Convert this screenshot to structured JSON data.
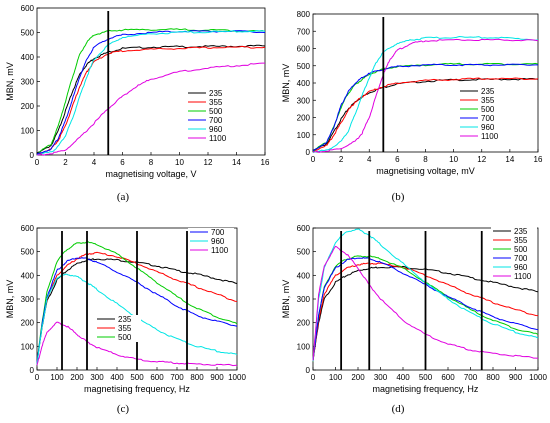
{
  "chart_data": [
    {
      "type": "line",
      "caption": "(a)",
      "xlabel": "magnetising voltage, V",
      "ylabel": "MBN, mV",
      "xlim": [
        0,
        16
      ],
      "ylim": [
        0,
        600
      ],
      "xticks": [
        "0",
        "2",
        "4",
        "6",
        "8",
        "10",
        "12",
        "14",
        "16"
      ],
      "yticks": [
        "0",
        "100",
        "200",
        "300",
        "400",
        "500",
        "600"
      ],
      "legend_position": "center-right",
      "markers": [
        5
      ],
      "series": [
        {
          "name": "235",
          "color": "#000000",
          "x": [
            0,
            1,
            1.5,
            2,
            2.5,
            3,
            3.5,
            4,
            5,
            6,
            8,
            10,
            12,
            14,
            16
          ],
          "y": [
            5,
            40,
            100,
            180,
            260,
            330,
            370,
            395,
            420,
            435,
            440,
            442,
            443,
            444,
            445
          ]
        },
        {
          "name": "355",
          "color": "#ff0000",
          "x": [
            0,
            1,
            1.5,
            2,
            2.5,
            3,
            3.5,
            4,
            5,
            6,
            8,
            10,
            12,
            14,
            16
          ],
          "y": [
            3,
            25,
            60,
            120,
            200,
            280,
            340,
            380,
            415,
            425,
            432,
            435,
            438,
            440,
            440
          ]
        },
        {
          "name": "500",
          "color": "#00cc00",
          "x": [
            0,
            1,
            1.5,
            2,
            2.5,
            3,
            3.5,
            4,
            5,
            6,
            8,
            10,
            12,
            14,
            16
          ],
          "y": [
            5,
            45,
            120,
            220,
            320,
            410,
            460,
            490,
            505,
            510,
            512,
            512,
            510,
            508,
            505
          ]
        },
        {
          "name": "700",
          "color": "#0000ff",
          "x": [
            0,
            1,
            1.5,
            2,
            2.5,
            3,
            3.5,
            4,
            5,
            6,
            8,
            10,
            12,
            14,
            16
          ],
          "y": [
            3,
            25,
            70,
            140,
            230,
            320,
            390,
            440,
            475,
            490,
            500,
            505,
            505,
            505,
            500
          ]
        },
        {
          "name": "960",
          "color": "#00e5e5",
          "x": [
            0,
            1,
            1.5,
            2,
            2.5,
            3,
            3.5,
            4,
            5,
            6,
            8,
            10,
            12,
            14,
            16
          ],
          "y": [
            2,
            12,
            35,
            80,
            150,
            240,
            320,
            390,
            450,
            480,
            495,
            500,
            502,
            505,
            505
          ]
        },
        {
          "name": "1100",
          "color": "#e000e0",
          "x": [
            0,
            1,
            2,
            3,
            4,
            5,
            6,
            7,
            8,
            10,
            12,
            14,
            16
          ],
          "y": [
            0,
            5,
            20,
            70,
            130,
            190,
            240,
            280,
            310,
            340,
            355,
            365,
            375
          ]
        }
      ]
    },
    {
      "type": "line",
      "caption": "(b)",
      "xlabel": "magnetising voltage, mV",
      "ylabel": "MBN, mV",
      "xlim": [
        0,
        16
      ],
      "ylim": [
        0,
        800
      ],
      "xticks": [
        "0",
        "2",
        "4",
        "6",
        "8",
        "10",
        "12",
        "14",
        "16"
      ],
      "yticks": [
        "0",
        "100",
        "200",
        "300",
        "400",
        "500",
        "600",
        "700",
        "800"
      ],
      "legend_position": "bottom-right",
      "markers": [
        5
      ],
      "series": [
        {
          "name": "235",
          "color": "#000000",
          "x": [
            0,
            1,
            1.5,
            2,
            2.5,
            3,
            3.5,
            4,
            5,
            6,
            8,
            10,
            12,
            14,
            16
          ],
          "y": [
            5,
            50,
            120,
            190,
            250,
            290,
            320,
            345,
            375,
            395,
            410,
            418,
            420,
            422,
            422
          ]
        },
        {
          "name": "355",
          "color": "#ff0000",
          "x": [
            0,
            1,
            1.5,
            2,
            2.5,
            3,
            3.5,
            4,
            5,
            6,
            8,
            10,
            12,
            14,
            16
          ],
          "y": [
            5,
            40,
            100,
            170,
            240,
            290,
            320,
            350,
            380,
            400,
            415,
            420,
            425,
            425,
            425
          ]
        },
        {
          "name": "500",
          "color": "#00cc00",
          "x": [
            0,
            1,
            1.5,
            2,
            2.5,
            3,
            3.5,
            4,
            5,
            6,
            8,
            10,
            12,
            14,
            16
          ],
          "y": [
            5,
            60,
            150,
            260,
            340,
            390,
            420,
            450,
            480,
            495,
            505,
            510,
            510,
            510,
            510
          ]
        },
        {
          "name": "700",
          "color": "#0000ff",
          "x": [
            0,
            1,
            1.5,
            2,
            2.5,
            3,
            3.5,
            4,
            5,
            6,
            8,
            10,
            12,
            14,
            16
          ],
          "y": [
            5,
            60,
            150,
            270,
            350,
            400,
            430,
            455,
            480,
            495,
            505,
            505,
            505,
            505,
            505
          ]
        },
        {
          "name": "960",
          "color": "#00e5e5",
          "x": [
            0,
            1,
            2,
            2.5,
            3,
            3.5,
            4,
            4.5,
            5,
            6,
            7,
            8,
            10,
            12,
            14,
            16
          ],
          "y": [
            0,
            10,
            60,
            120,
            220,
            330,
            430,
            520,
            580,
            630,
            650,
            660,
            665,
            665,
            660,
            650
          ]
        },
        {
          "name": "1100",
          "color": "#e000e0",
          "x": [
            0,
            1,
            2,
            3,
            3.5,
            4,
            4.5,
            5,
            5.5,
            6,
            7,
            8,
            10,
            12,
            14,
            16
          ],
          "y": [
            0,
            5,
            20,
            60,
            110,
            200,
            330,
            450,
            540,
            590,
            630,
            645,
            650,
            650,
            650,
            645
          ]
        }
      ]
    },
    {
      "type": "line",
      "caption": "(c)",
      "xlabel": "magnetising frequency, Hz",
      "ylabel": "MBN, mV",
      "xlim": [
        0,
        1000
      ],
      "ylim": [
        0,
        600
      ],
      "xticks": [
        "0",
        "100",
        "200",
        "300",
        "400",
        "500",
        "600",
        "700",
        "800",
        "900",
        "1000"
      ],
      "yticks": [
        "0",
        "100",
        "200",
        "300",
        "400",
        "500",
        "600"
      ],
      "legend_groups": [
        {
          "position": "top-right",
          "names": [
            "700",
            "960",
            "1100"
          ]
        },
        {
          "position": "bottom-left",
          "names": [
            "235",
            "355",
            "500"
          ]
        }
      ],
      "markers": [
        125,
        250,
        500,
        750
      ],
      "series": [
        {
          "name": "235",
          "color": "#000000",
          "x": [
            0,
            25,
            50,
            100,
            150,
            200,
            250,
            300,
            400,
            500,
            600,
            700,
            800,
            900,
            1000
          ],
          "y": [
            30,
            180,
            290,
            380,
            420,
            450,
            465,
            470,
            465,
            455,
            440,
            420,
            405,
            385,
            365
          ]
        },
        {
          "name": "355",
          "color": "#ff0000",
          "x": [
            0,
            25,
            50,
            100,
            150,
            200,
            250,
            300,
            400,
            500,
            600,
            700,
            800,
            900,
            1000
          ],
          "y": [
            30,
            190,
            300,
            400,
            440,
            470,
            490,
            495,
            480,
            450,
            415,
            380,
            350,
            320,
            290
          ]
        },
        {
          "name": "500",
          "color": "#00cc00",
          "x": [
            0,
            25,
            50,
            100,
            150,
            200,
            250,
            300,
            400,
            500,
            600,
            700,
            800,
            900,
            1000
          ],
          "y": [
            30,
            200,
            330,
            460,
            510,
            535,
            540,
            530,
            490,
            430,
            370,
            310,
            260,
            225,
            195
          ]
        },
        {
          "name": "700",
          "color": "#0000ff",
          "x": [
            0,
            25,
            50,
            100,
            150,
            200,
            250,
            300,
            400,
            500,
            600,
            700,
            800,
            900,
            1000
          ],
          "y": [
            30,
            190,
            310,
            420,
            460,
            475,
            470,
            455,
            415,
            370,
            320,
            270,
            230,
            205,
            185
          ]
        },
        {
          "name": "960",
          "color": "#00e5e5",
          "x": [
            0,
            25,
            50,
            100,
            150,
            200,
            250,
            300,
            400,
            500,
            600,
            700,
            800,
            900,
            1000
          ],
          "y": [
            25,
            180,
            300,
            390,
            405,
            395,
            370,
            340,
            280,
            220,
            170,
            130,
            100,
            80,
            65
          ]
        },
        {
          "name": "1100",
          "color": "#e000e0",
          "x": [
            0,
            25,
            50,
            100,
            150,
            200,
            250,
            300,
            400,
            500,
            600,
            700,
            800,
            900,
            1000
          ],
          "y": [
            20,
            100,
            160,
            200,
            185,
            150,
            120,
            95,
            65,
            45,
            35,
            30,
            25,
            22,
            20
          ]
        }
      ]
    },
    {
      "type": "line",
      "caption": "(d)",
      "xlabel": "magnetising frequency, Hz",
      "ylabel": "MBN, mV",
      "xlim": [
        0,
        1000
      ],
      "ylim": [
        0,
        600
      ],
      "xticks": [
        "0",
        "100",
        "200",
        "300",
        "400",
        "500",
        "600",
        "700",
        "800",
        "900",
        "1000"
      ],
      "yticks": [
        "0",
        "100",
        "200",
        "300",
        "400",
        "500",
        "600"
      ],
      "legend_position": "top-right",
      "markers": [
        125,
        250,
        500,
        750
      ],
      "series": [
        {
          "name": "235",
          "color": "#000000",
          "x": [
            0,
            25,
            50,
            100,
            150,
            200,
            250,
            300,
            400,
            500,
            600,
            700,
            800,
            900,
            1000
          ],
          "y": [
            40,
            200,
            300,
            370,
            400,
            420,
            430,
            435,
            435,
            425,
            410,
            390,
            370,
            350,
            330
          ]
        },
        {
          "name": "355",
          "color": "#ff0000",
          "x": [
            0,
            25,
            50,
            100,
            150,
            200,
            250,
            300,
            400,
            500,
            600,
            700,
            800,
            900,
            1000
          ],
          "y": [
            40,
            210,
            320,
            400,
            430,
            445,
            450,
            450,
            435,
            400,
            360,
            320,
            285,
            255,
            230
          ]
        },
        {
          "name": "500",
          "color": "#00cc00",
          "x": [
            0,
            25,
            50,
            100,
            150,
            200,
            250,
            300,
            400,
            500,
            600,
            700,
            800,
            900,
            1000
          ],
          "y": [
            40,
            230,
            350,
            440,
            470,
            480,
            480,
            470,
            430,
            370,
            310,
            255,
            210,
            175,
            150
          ]
        },
        {
          "name": "700",
          "color": "#0000ff",
          "x": [
            0,
            25,
            50,
            100,
            150,
            200,
            250,
            300,
            400,
            500,
            600,
            700,
            800,
            900,
            1000
          ],
          "y": [
            40,
            230,
            350,
            430,
            465,
            475,
            470,
            455,
            410,
            360,
            310,
            265,
            225,
            195,
            170
          ]
        },
        {
          "name": "960",
          "color": "#00e5e5",
          "x": [
            0,
            25,
            50,
            100,
            150,
            200,
            250,
            300,
            400,
            500,
            600,
            700,
            800,
            900,
            1000
          ],
          "y": [
            40,
            300,
            430,
            540,
            585,
            595,
            570,
            530,
            450,
            370,
            300,
            240,
            195,
            160,
            135
          ]
        },
        {
          "name": "1100",
          "color": "#e000e0",
          "x": [
            0,
            25,
            50,
            100,
            150,
            200,
            250,
            300,
            400,
            500,
            600,
            700,
            800,
            900,
            1000
          ],
          "y": [
            40,
            320,
            440,
            520,
            490,
            430,
            360,
            300,
            210,
            150,
            110,
            85,
            70,
            60,
            50
          ]
        }
      ]
    }
  ]
}
